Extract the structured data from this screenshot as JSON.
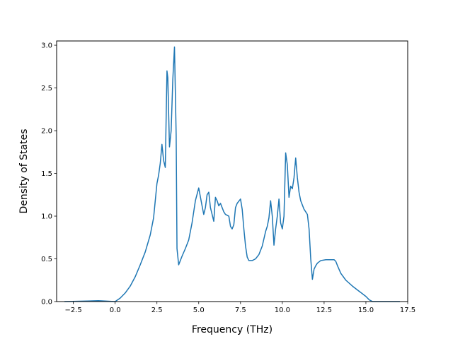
{
  "chart_data": {
    "type": "line",
    "title": "",
    "xlabel": "Frequency (THz)",
    "ylabel": "Density of States",
    "xlim": [
      -3.5,
      17.5
    ],
    "ylim": [
      0.0,
      3.05
    ],
    "xticks": [
      {
        "value": -2.5,
        "label": "−2.5"
      },
      {
        "value": 0.0,
        "label": "0.0"
      },
      {
        "value": 2.5,
        "label": "2.5"
      },
      {
        "value": 5.0,
        "label": "5.0"
      },
      {
        "value": 7.5,
        "label": "7.5"
      },
      {
        "value": 10.0,
        "label": "10.0"
      },
      {
        "value": 12.5,
        "label": "12.5"
      },
      {
        "value": 15.0,
        "label": "15.0"
      },
      {
        "value": 17.5,
        "label": "17.5"
      }
    ],
    "yticks": [
      {
        "value": 0.0,
        "label": "0.0"
      },
      {
        "value": 0.5,
        "label": "0.5"
      },
      {
        "value": 1.0,
        "label": "1.0"
      },
      {
        "value": 1.5,
        "label": "1.5"
      },
      {
        "value": 2.0,
        "label": "2.0"
      },
      {
        "value": 2.5,
        "label": "2.5"
      },
      {
        "value": 3.0,
        "label": "3.0"
      }
    ],
    "grid": false,
    "legend": "none",
    "series": [
      {
        "color": "#1f77b4",
        "x": [
          -3.0,
          -1.0,
          0.0,
          0.3,
          0.6,
          0.9,
          1.2,
          1.5,
          1.8,
          2.1,
          2.3,
          2.5,
          2.6,
          2.7,
          2.8,
          2.9,
          3.0,
          3.1,
          3.15,
          3.25,
          3.35,
          3.45,
          3.55,
          3.65,
          3.7,
          3.8,
          3.9,
          4.0,
          4.2,
          4.4,
          4.6,
          4.8,
          5.0,
          5.2,
          5.3,
          5.4,
          5.5,
          5.6,
          5.7,
          5.8,
          5.9,
          6.0,
          6.1,
          6.2,
          6.3,
          6.4,
          6.5,
          6.6,
          6.8,
          6.9,
          7.0,
          7.1,
          7.2,
          7.3,
          7.5,
          7.6,
          7.7,
          7.8,
          7.9,
          8.0,
          8.1,
          8.2,
          8.4,
          8.6,
          8.8,
          9.0,
          9.1,
          9.2,
          9.3,
          9.4,
          9.5,
          9.6,
          9.7,
          9.8,
          9.9,
          10.0,
          10.1,
          10.2,
          10.3,
          10.4,
          10.5,
          10.6,
          10.7,
          10.8,
          10.9,
          11.0,
          11.1,
          11.2,
          11.3,
          11.4,
          11.5,
          11.6,
          11.7,
          11.8,
          11.9,
          12.0,
          12.1,
          12.3,
          12.6,
          12.9,
          13.1,
          13.2,
          13.3,
          13.5,
          13.8,
          14.2,
          14.6,
          15.0,
          15.2,
          15.4,
          16.0,
          17.0
        ],
        "y": [
          0.0,
          0.01,
          0.0,
          0.04,
          0.1,
          0.18,
          0.29,
          0.43,
          0.58,
          0.78,
          0.98,
          1.38,
          1.48,
          1.62,
          1.84,
          1.65,
          1.57,
          2.7,
          2.62,
          1.81,
          2.0,
          2.6,
          2.98,
          1.95,
          0.62,
          0.43,
          0.48,
          0.53,
          0.62,
          0.72,
          0.92,
          1.18,
          1.33,
          1.12,
          1.02,
          1.1,
          1.25,
          1.28,
          1.1,
          1.02,
          0.94,
          1.22,
          1.18,
          1.12,
          1.15,
          1.1,
          1.05,
          1.02,
          1.0,
          0.88,
          0.85,
          0.9,
          1.1,
          1.15,
          1.2,
          1.08,
          0.85,
          0.65,
          0.52,
          0.48,
          0.48,
          0.48,
          0.5,
          0.55,
          0.65,
          0.82,
          0.88,
          0.98,
          1.18,
          1.0,
          0.66,
          0.85,
          1.0,
          1.2,
          0.92,
          0.85,
          1.0,
          1.74,
          1.6,
          1.22,
          1.35,
          1.32,
          1.45,
          1.68,
          1.45,
          1.28,
          1.18,
          1.13,
          1.08,
          1.05,
          1.02,
          0.85,
          0.5,
          0.26,
          0.38,
          0.42,
          0.45,
          0.48,
          0.49,
          0.49,
          0.49,
          0.47,
          0.42,
          0.33,
          0.25,
          0.18,
          0.12,
          0.06,
          0.02,
          0.0,
          0.0,
          0.0
        ]
      }
    ]
  }
}
